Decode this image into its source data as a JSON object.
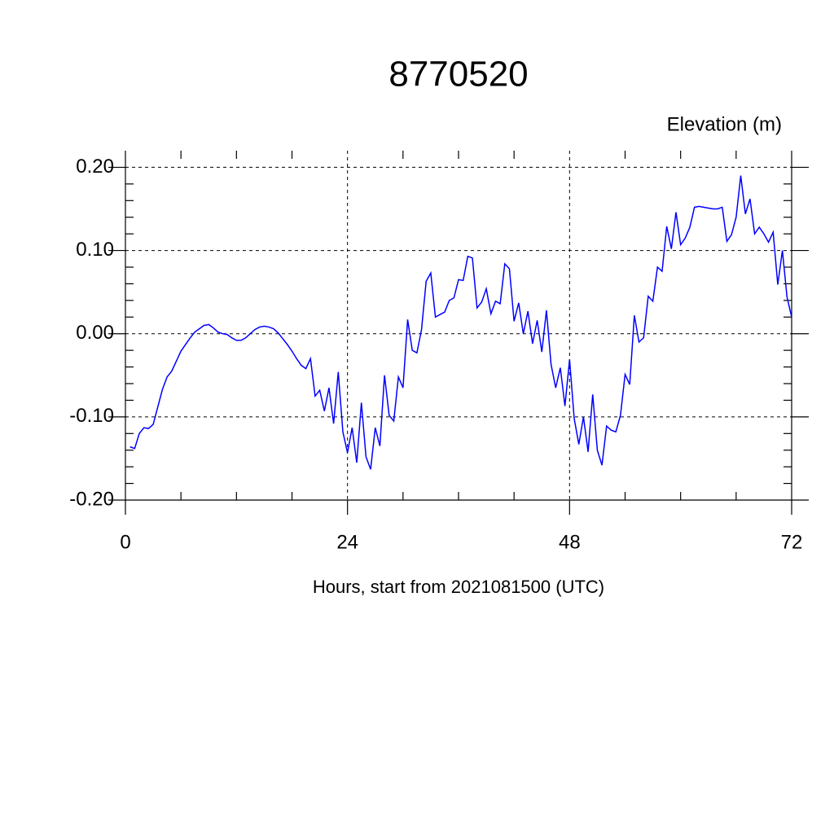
{
  "chart_data": {
    "type": "line",
    "title": "8770520",
    "subtitle": "Elevation (m)",
    "x_label": "Hours, start from 2021081500 (UTC)",
    "xlim": [
      0,
      72
    ],
    "ylim": [
      -0.2,
      0.22
    ],
    "xticks": [
      0,
      24,
      48,
      72
    ],
    "yticks": [
      {
        "value": 0.2,
        "label": "0.20"
      },
      {
        "value": 0.1,
        "label": "0.10"
      },
      {
        "value": 0,
        "label": "0.00"
      },
      {
        "value": -0.1,
        "label": "-0.10"
      },
      {
        "value": -0.2,
        "label": "-0.20"
      }
    ],
    "xminorticks": [
      6,
      12,
      18,
      30,
      36,
      42,
      54,
      60,
      66
    ],
    "yminorticks": [
      -0.18,
      -0.16,
      -0.14,
      -0.12,
      -0.08,
      -0.06,
      -0.04,
      -0.02,
      0.02,
      0.04,
      0.06,
      0.08,
      0.12,
      0.14,
      0.16,
      0.18
    ],
    "grid": true,
    "x": [
      0.5,
      1,
      1.5,
      2,
      2.5,
      3,
      3.5,
      4,
      4.5,
      5,
      5.5,
      6,
      6.5,
      7,
      7.5,
      8,
      8.5,
      9,
      9.5,
      10,
      10.5,
      11,
      11.5,
      12,
      12.5,
      13,
      13.5,
      14,
      14.5,
      15,
      15.5,
      16,
      16.5,
      17,
      17.5,
      18,
      18.5,
      19,
      19.5,
      20,
      20.5,
      21,
      21.5,
      22,
      22.5,
      23,
      23.5,
      24,
      24.5,
      25,
      25.5,
      26,
      26.5,
      27,
      27.5,
      28,
      28.5,
      29,
      29.5,
      30,
      30.5,
      31,
      31.5,
      32,
      32.5,
      33,
      33.5,
      34,
      34.5,
      35,
      35.5,
      36,
      36.5,
      37,
      37.5,
      38,
      38.5,
      39,
      39.5,
      40,
      40.5,
      41,
      41.5,
      42,
      42.5,
      43,
      43.5,
      44,
      44.5,
      45,
      45.5,
      46,
      46.5,
      47,
      47.5,
      48,
      48.5,
      49,
      49.5,
      50,
      50.5,
      51,
      51.5,
      52,
      52.5,
      53,
      53.5,
      54,
      54.5,
      55,
      55.5,
      56,
      56.5,
      57,
      57.5,
      58,
      58.5,
      59,
      59.5,
      60,
      60.5,
      61,
      61.5,
      62,
      62.5,
      63,
      63.5,
      64,
      64.5,
      65,
      65.5,
      66,
      66.5,
      67,
      67.5,
      68,
      68.5,
      69,
      69.5,
      70,
      70.5,
      71,
      71.5,
      72
    ],
    "series": [
      {
        "name": "Elevation",
        "color": "#0000ff",
        "values": [
          -0.136,
          -0.138,
          -0.12,
          -0.113,
          -0.114,
          -0.109,
          -0.088,
          -0.067,
          -0.052,
          -0.045,
          -0.033,
          -0.021,
          -0.013,
          -0.005,
          0.002,
          0.006,
          0.01,
          0.011,
          0.007,
          0.002,
          0,
          -0.001,
          -0.005,
          -0.008,
          -0.008,
          -0.005,
          0,
          0.005,
          0.008,
          0.009,
          0.008,
          0.006,
          0.001,
          -0.006,
          -0.013,
          -0.021,
          -0.03,
          -0.038,
          -0.042,
          -0.03,
          -0.075,
          -0.068,
          -0.093,
          -0.065,
          -0.108,
          -0.046,
          -0.118,
          -0.143,
          -0.113,
          -0.155,
          -0.083,
          -0.148,
          -0.163,
          -0.113,
          -0.135,
          -0.05,
          -0.098,
          -0.105,
          -0.052,
          -0.065,
          0.017,
          -0.02,
          -0.023,
          0.005,
          0.063,
          0.073,
          0.02,
          0.023,
          0.026,
          0.04,
          0.043,
          0.065,
          0.064,
          0.093,
          0.091,
          0.031,
          0.038,
          0.054,
          0.024,
          0.039,
          0.036,
          0.084,
          0.078,
          0.015,
          0.037,
          0,
          0.027,
          -0.012,
          0.016,
          -0.022,
          0.028,
          -0.037,
          -0.065,
          -0.041,
          -0.087,
          -0.031,
          -0.102,
          -0.133,
          -0.1,
          -0.142,
          -0.073,
          -0.14,
          -0.158,
          -0.111,
          -0.116,
          -0.118,
          -0.098,
          -0.049,
          -0.061,
          0.022,
          -0.01,
          -0.005,
          0.045,
          0.039,
          0.08,
          0.075,
          0.129,
          0.102,
          0.146,
          0.107,
          0.115,
          0.128,
          0.152,
          0.153,
          0.152,
          0.151,
          0.15,
          0.15,
          0.152,
          0.111,
          0.119,
          0.14,
          0.19,
          0.144,
          0.162,
          0.12,
          0.128,
          0.12,
          0.11,
          0.122,
          0.059,
          0.1,
          0.044,
          0.02
        ]
      }
    ]
  }
}
